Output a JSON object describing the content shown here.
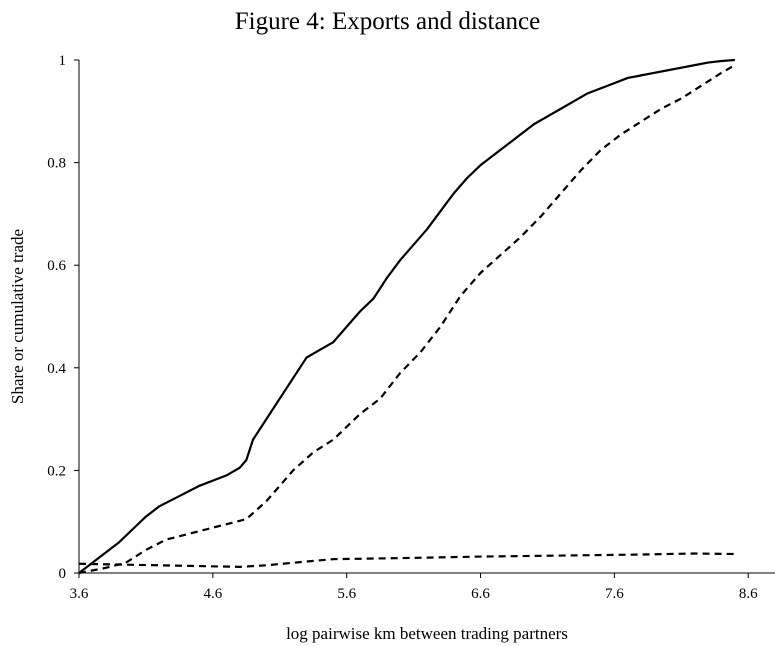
{
  "chart_data": {
    "type": "line",
    "title": "Figure 4: Exports and distance",
    "xlabel": "log pairwise km between trading partners",
    "ylabel": "Share or cumulative trade",
    "xlim": [
      3.6,
      8.8
    ],
    "ylim": [
      0,
      1
    ],
    "x_ticks": [
      "3.6",
      "4.6",
      "5.6",
      "6.6",
      "7.6",
      "8.6"
    ],
    "y_ticks": [
      "0",
      "0.2",
      "0.4",
      "0.6",
      "0.8",
      "1"
    ],
    "grid": false,
    "series": [
      {
        "style": "solid",
        "color": "#000000",
        "points": [
          [
            3.6,
            0.0
          ],
          [
            3.75,
            0.03
          ],
          [
            3.9,
            0.06
          ],
          [
            4.0,
            0.085
          ],
          [
            4.1,
            0.11
          ],
          [
            4.2,
            0.13
          ],
          [
            4.35,
            0.15
          ],
          [
            4.5,
            0.17
          ],
          [
            4.6,
            0.18
          ],
          [
            4.7,
            0.19
          ],
          [
            4.8,
            0.205
          ],
          [
            4.85,
            0.22
          ],
          [
            4.9,
            0.26
          ],
          [
            5.0,
            0.3
          ],
          [
            5.1,
            0.34
          ],
          [
            5.2,
            0.38
          ],
          [
            5.3,
            0.42
          ],
          [
            5.4,
            0.435
          ],
          [
            5.5,
            0.45
          ],
          [
            5.6,
            0.48
          ],
          [
            5.7,
            0.51
          ],
          [
            5.8,
            0.535
          ],
          [
            5.9,
            0.575
          ],
          [
            6.0,
            0.61
          ],
          [
            6.1,
            0.64
          ],
          [
            6.2,
            0.67
          ],
          [
            6.3,
            0.705
          ],
          [
            6.4,
            0.74
          ],
          [
            6.5,
            0.77
          ],
          [
            6.6,
            0.795
          ],
          [
            6.7,
            0.815
          ],
          [
            6.8,
            0.835
          ],
          [
            6.9,
            0.855
          ],
          [
            7.0,
            0.875
          ],
          [
            7.1,
            0.89
          ],
          [
            7.2,
            0.905
          ],
          [
            7.3,
            0.92
          ],
          [
            7.4,
            0.935
          ],
          [
            7.5,
            0.945
          ],
          [
            7.6,
            0.955
          ],
          [
            7.7,
            0.965
          ],
          [
            7.8,
            0.97
          ],
          [
            7.9,
            0.975
          ],
          [
            8.0,
            0.98
          ],
          [
            8.1,
            0.985
          ],
          [
            8.2,
            0.99
          ],
          [
            8.3,
            0.995
          ],
          [
            8.4,
            0.998
          ],
          [
            8.5,
            1.0
          ]
        ]
      },
      {
        "style": "dashed",
        "color": "#000000",
        "points": [
          [
            3.6,
            0.0
          ],
          [
            3.8,
            0.01
          ],
          [
            3.95,
            0.02
          ],
          [
            4.1,
            0.045
          ],
          [
            4.25,
            0.065
          ],
          [
            4.4,
            0.075
          ],
          [
            4.55,
            0.085
          ],
          [
            4.7,
            0.095
          ],
          [
            4.85,
            0.105
          ],
          [
            5.0,
            0.14
          ],
          [
            5.1,
            0.17
          ],
          [
            5.2,
            0.2
          ],
          [
            5.35,
            0.235
          ],
          [
            5.5,
            0.26
          ],
          [
            5.6,
            0.285
          ],
          [
            5.7,
            0.31
          ],
          [
            5.85,
            0.34
          ],
          [
            6.0,
            0.39
          ],
          [
            6.15,
            0.43
          ],
          [
            6.3,
            0.48
          ],
          [
            6.45,
            0.54
          ],
          [
            6.6,
            0.585
          ],
          [
            6.75,
            0.62
          ],
          [
            6.9,
            0.655
          ],
          [
            7.05,
            0.695
          ],
          [
            7.2,
            0.74
          ],
          [
            7.35,
            0.785
          ],
          [
            7.5,
            0.825
          ],
          [
            7.65,
            0.855
          ],
          [
            7.8,
            0.88
          ],
          [
            7.95,
            0.905
          ],
          [
            8.1,
            0.925
          ],
          [
            8.25,
            0.95
          ],
          [
            8.4,
            0.975
          ],
          [
            8.5,
            0.99
          ]
        ]
      },
      {
        "style": "dashed",
        "color": "#000000",
        "points": [
          [
            3.6,
            0.018
          ],
          [
            4.0,
            0.016
          ],
          [
            4.4,
            0.014
          ],
          [
            4.8,
            0.012
          ],
          [
            5.0,
            0.015
          ],
          [
            5.2,
            0.02
          ],
          [
            5.5,
            0.027
          ],
          [
            6.0,
            0.029
          ],
          [
            6.6,
            0.032
          ],
          [
            7.2,
            0.034
          ],
          [
            7.8,
            0.036
          ],
          [
            8.2,
            0.038
          ],
          [
            8.5,
            0.037
          ]
        ]
      }
    ]
  }
}
